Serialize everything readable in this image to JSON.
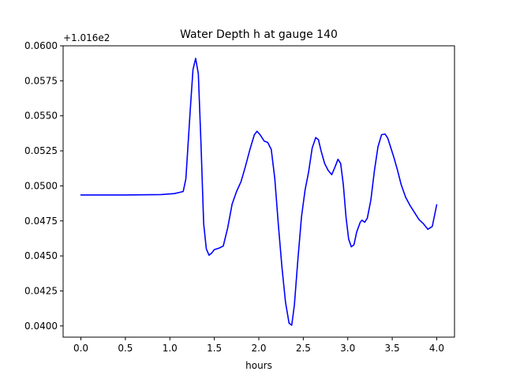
{
  "chart_data": {
    "type": "line",
    "title": "Water Depth h at gauge 140",
    "xlabel": "hours",
    "ylabel": "",
    "y_offset_label": "+1.016e2",
    "xlim": [
      -0.2,
      4.2
    ],
    "ylim": [
      0.0392,
      0.06
    ],
    "xticks": [
      {
        "value": 0.0,
        "label": "0.0"
      },
      {
        "value": 0.5,
        "label": "0.5"
      },
      {
        "value": 1.0,
        "label": "1.0"
      },
      {
        "value": 1.5,
        "label": "1.5"
      },
      {
        "value": 2.0,
        "label": "2.0"
      },
      {
        "value": 2.5,
        "label": "2.5"
      },
      {
        "value": 3.0,
        "label": "3.0"
      },
      {
        "value": 3.5,
        "label": "3.5"
      },
      {
        "value": 4.0,
        "label": "4.0"
      }
    ],
    "yticks": [
      {
        "value": 0.04,
        "label": "0.0400"
      },
      {
        "value": 0.0425,
        "label": "0.0425"
      },
      {
        "value": 0.045,
        "label": "0.0450"
      },
      {
        "value": 0.0475,
        "label": "0.0475"
      },
      {
        "value": 0.05,
        "label": "0.0500"
      },
      {
        "value": 0.0525,
        "label": "0.0525"
      },
      {
        "value": 0.055,
        "label": "0.0550"
      },
      {
        "value": 0.0575,
        "label": "0.0575"
      },
      {
        "value": 0.06,
        "label": "0.0600"
      }
    ],
    "grid": false,
    "series": [
      {
        "color": "#0000ff",
        "x": [
          0.0,
          0.5,
          0.9,
          1.05,
          1.12,
          1.15,
          1.18,
          1.2,
          1.23,
          1.26,
          1.29,
          1.32,
          1.35,
          1.38,
          1.41,
          1.44,
          1.47,
          1.5,
          1.55,
          1.6,
          1.65,
          1.7,
          1.75,
          1.8,
          1.85,
          1.9,
          1.95,
          1.98,
          2.02,
          2.06,
          2.1,
          2.14,
          2.18,
          2.22,
          2.26,
          2.3,
          2.34,
          2.37,
          2.4,
          2.44,
          2.48,
          2.52,
          2.56,
          2.6,
          2.64,
          2.67,
          2.7,
          2.74,
          2.78,
          2.82,
          2.86,
          2.89,
          2.92,
          2.95,
          2.98,
          3.01,
          3.04,
          3.07,
          3.1,
          3.14,
          3.16,
          3.19,
          3.22,
          3.26,
          3.3,
          3.34,
          3.38,
          3.42,
          3.45,
          3.48,
          3.52,
          3.56,
          3.6,
          3.65,
          3.7,
          3.75,
          3.8,
          3.85,
          3.9,
          3.95,
          4.0
        ],
        "y": [
          0.04935,
          0.04935,
          0.04938,
          0.04945,
          0.04955,
          0.0496,
          0.0505,
          0.0525,
          0.0555,
          0.0583,
          0.0591,
          0.058,
          0.053,
          0.0473,
          0.0455,
          0.04505,
          0.0452,
          0.04545,
          0.04555,
          0.0457,
          0.047,
          0.0487,
          0.0496,
          0.0503,
          0.0514,
          0.0526,
          0.05365,
          0.0539,
          0.0536,
          0.0532,
          0.0531,
          0.0526,
          0.0505,
          0.0472,
          0.0442,
          0.0417,
          0.0402,
          0.04005,
          0.0415,
          0.0448,
          0.0478,
          0.0497,
          0.051,
          0.0527,
          0.05345,
          0.0533,
          0.0525,
          0.0516,
          0.0511,
          0.0508,
          0.0514,
          0.0519,
          0.0516,
          0.0501,
          0.0478,
          0.0462,
          0.04565,
          0.0458,
          0.0467,
          0.0474,
          0.04755,
          0.0474,
          0.0477,
          0.049,
          0.0511,
          0.0528,
          0.05365,
          0.0537,
          0.0534,
          0.0528,
          0.052,
          0.0511,
          0.0501,
          0.0492,
          0.0486,
          0.0481,
          0.0476,
          0.0473,
          0.0469,
          0.0471,
          0.04865
        ]
      }
    ]
  }
}
